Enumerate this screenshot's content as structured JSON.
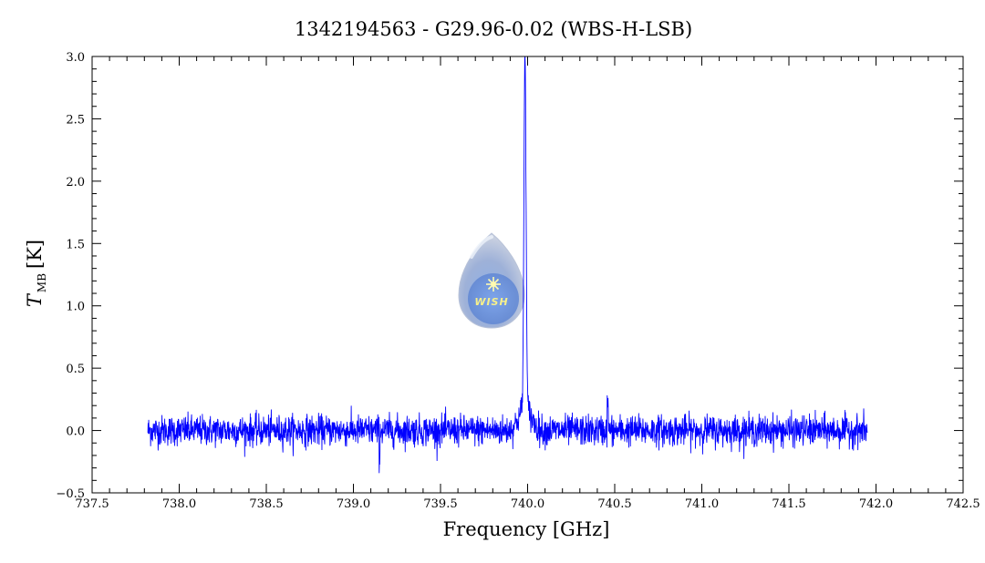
{
  "chart_data": {
    "type": "line",
    "title": "1342194563 - G29.96-0.02 (WBS-H-LSB)",
    "xlabel": "Frequency [GHz]",
    "ylabel_main": "T",
    "ylabel_sub": "MB",
    "ylabel_unit": "[K]",
    "xlim": [
      737.5,
      742.5
    ],
    "ylim": [
      -0.5,
      3.0
    ],
    "x_ticks": [
      737.5,
      738.0,
      738.5,
      739.0,
      739.5,
      740.0,
      740.5,
      741.0,
      741.5,
      742.0,
      742.5
    ],
    "x_tick_labels": [
      "737.5",
      "738.0",
      "738.5",
      "739.0",
      "739.5",
      "740.0",
      "740.5",
      "741.0",
      "741.5",
      "742.0",
      "742.5"
    ],
    "y_ticks": [
      -0.5,
      0.0,
      0.5,
      1.0,
      1.5,
      2.0,
      2.5,
      3.0
    ],
    "y_tick_labels": [
      "−0.5",
      "0.0",
      "0.5",
      "1.0",
      "1.5",
      "2.0",
      "2.5",
      "3.0"
    ],
    "grid": false,
    "series": [
      {
        "color": "#0000ff",
        "x_range": [
          737.82,
          741.95
        ],
        "noise_rms": 0.06,
        "baseline": 0.0,
        "line_center": 739.985,
        "line_peak": 2.88,
        "line_core_width": 0.006,
        "line_wing_amplitude": 0.18,
        "line_wing_width": 0.035,
        "points": [
          [
            737.82,
            0.0
          ],
          [
            737.9,
            0.05
          ],
          [
            738.0,
            -0.1
          ],
          [
            738.1,
            0.05
          ],
          [
            738.3,
            0.2
          ],
          [
            738.5,
            0.0
          ],
          [
            739.0,
            0.05
          ],
          [
            739.15,
            -0.3
          ],
          [
            739.5,
            0.0
          ],
          [
            739.7,
            0.1
          ],
          [
            739.85,
            0.05
          ],
          [
            739.93,
            0.25
          ],
          [
            739.96,
            0.9
          ],
          [
            739.975,
            2.7
          ],
          [
            739.985,
            2.88
          ],
          [
            739.99,
            2.4
          ],
          [
            739.995,
            1.2
          ],
          [
            740.01,
            0.4
          ],
          [
            740.04,
            0.1
          ],
          [
            740.1,
            0.0
          ],
          [
            740.46,
            0.32
          ],
          [
            741.0,
            0.0
          ],
          [
            741.5,
            0.05
          ],
          [
            741.95,
            0.0
          ]
        ]
      }
    ]
  },
  "logo": {
    "text": "WISH"
  }
}
